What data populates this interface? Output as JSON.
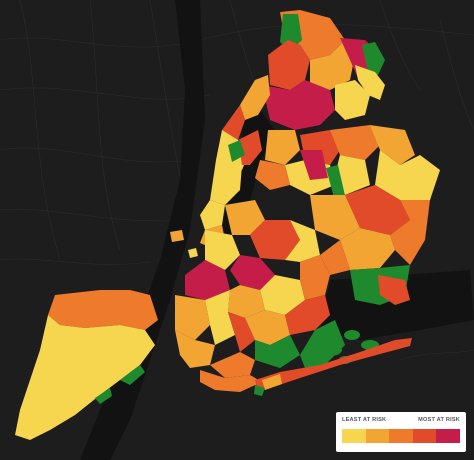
{
  "legend": {
    "least_label": "LEAST AT RISK",
    "most_label": "MOST AT RISK",
    "colors": [
      "#f6d54f",
      "#f3a533",
      "#ee7a2c",
      "#e14b2a",
      "#c51d4a"
    ]
  },
  "map": {
    "background": "#1a1a1a",
    "water_color": "#141414",
    "street_color": "#2b2b2b",
    "park_color": "#1f8a2d",
    "risk_levels": {
      "least": "#f6d54f",
      "low": "#f3a533",
      "medium": "#ee7a2c",
      "high": "#e14b2a",
      "most": "#c51d4a"
    }
  }
}
